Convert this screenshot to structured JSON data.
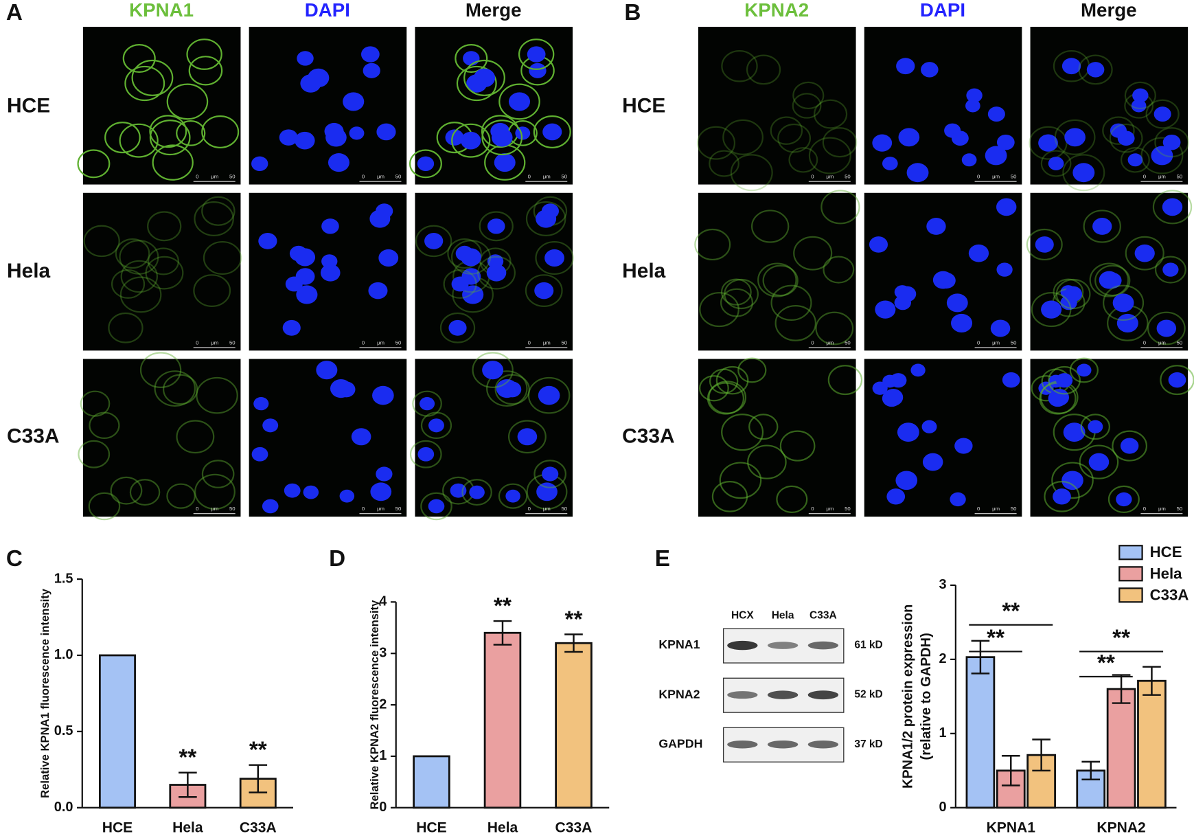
{
  "panels": {
    "letters": [
      "A",
      "B",
      "C",
      "D",
      "E"
    ],
    "A": {
      "columns": [
        "KPNA1",
        "DAPI",
        "Merge"
      ],
      "rows": [
        "HCE",
        "Hela",
        "C33A"
      ]
    },
    "B": {
      "columns": [
        "KPNA2",
        "DAPI",
        "Merge"
      ],
      "rows": [
        "HCE",
        "Hela",
        "C33A"
      ]
    },
    "scale_bar": [
      "0",
      "μm",
      "50"
    ]
  },
  "blot": {
    "lanes": [
      "HCX",
      "Hela",
      "C33A"
    ],
    "rows": [
      {
        "label": "KPNA1",
        "size": "61 kD"
      },
      {
        "label": "KPNA2",
        "size": "52 kD"
      },
      {
        "label": "GAPDH",
        "size": "37 kD"
      }
    ]
  },
  "chart_data": [
    {
      "type": "bar",
      "ylabel": [
        "Relative KPNA1 fluorescence intensity"
      ],
      "categories": [
        "HCE",
        "Hela",
        "C33A"
      ],
      "values": [
        1.0,
        0.15,
        0.19
      ],
      "errors": [
        0,
        0.08,
        0.09
      ],
      "colors": [
        "#a4c2f4",
        "#eaa0a0",
        "#f2c27e"
      ],
      "annotations": [
        "**",
        "**"
      ],
      "ylim": [
        0,
        1.5
      ],
      "yticks": [
        {
          "value": 0,
          "label": "0.0"
        },
        0.5,
        {
          "value": 1,
          "label": "1.0"
        },
        1.5
      ]
    },
    {
      "type": "bar",
      "ylabel": [
        "Relative KPNA2 fluorescence intensity"
      ],
      "categories": [
        "HCE",
        "Hela",
        "C33A"
      ],
      "values": [
        1,
        3.4,
        3.2
      ],
      "errors": [
        0,
        0.23,
        0.17
      ],
      "colors": [
        "#a4c2f4",
        "#eaa0a0",
        "#f2c27e"
      ],
      "annotations": [
        "**",
        "**"
      ],
      "ylim": [
        0,
        4
      ],
      "yticks": [
        0,
        1,
        2,
        3,
        4
      ]
    },
    {
      "type": "grouped-bar",
      "ylabel": [
        "KPNA1/2 protein expression",
        "(relative to GAPDH)"
      ],
      "categories": [
        "KPNA1",
        "KPNA2"
      ],
      "series": [
        {
          "name": "HCE",
          "color": "#a4c2f4",
          "values": [
            2.03,
            0.5
          ],
          "errors": [
            0.22,
            0.12
          ]
        },
        {
          "name": "Hela",
          "color": "#eaa0a0",
          "values": [
            0.5,
            1.6
          ],
          "errors": [
            0.2,
            0.19
          ]
        },
        {
          "name": "C33A",
          "color": "#f2c27e",
          "values": [
            0.71,
            1.71
          ],
          "errors": [
            0.21,
            0.19
          ]
        }
      ],
      "annotations": [
        "**",
        "**",
        "**",
        "**"
      ],
      "ylim": [
        0,
        3
      ],
      "yticks": [
        0,
        1,
        2,
        3
      ]
    }
  ]
}
